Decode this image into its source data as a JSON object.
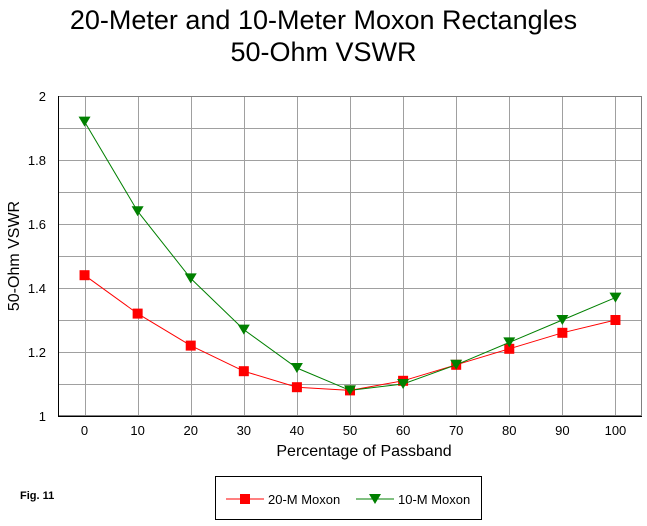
{
  "title_line1": "20-Meter and 10-Meter Moxon Rectangles",
  "title_line2": "50-Ohm VSWR",
  "figure_label": "Fig. 11",
  "chart_data": {
    "type": "line",
    "title": "20-Meter and 10-Meter Moxon Rectangles 50-Ohm VSWR",
    "xlabel": "Percentage of Passband",
    "ylabel": "50-Ohm VSWR",
    "x": [
      0,
      10,
      20,
      30,
      40,
      50,
      60,
      70,
      80,
      90,
      100
    ],
    "xticks": [
      "0",
      "10",
      "20",
      "30",
      "40",
      "50",
      "60",
      "70",
      "80",
      "90",
      "100"
    ],
    "yticks": [
      "1",
      "1.2",
      "1.4",
      "1.6",
      "1.8",
      "2"
    ],
    "yticks_values": [
      1.0,
      1.2,
      1.4,
      1.6,
      1.8,
      2.0
    ],
    "ylim": [
      1.0,
      2.0
    ],
    "xlim": [
      -5,
      105
    ],
    "grid": true,
    "legend_position": "bottom",
    "series": [
      {
        "name": "20-M Moxon",
        "color": "#ff0000",
        "marker": "square",
        "values": [
          1.44,
          1.32,
          1.22,
          1.14,
          1.09,
          1.08,
          1.11,
          1.16,
          1.21,
          1.26,
          1.3
        ]
      },
      {
        "name": "10-M Moxon",
        "color": "#008000",
        "marker": "triangle-down",
        "values": [
          1.92,
          1.64,
          1.43,
          1.27,
          1.15,
          1.08,
          1.1,
          1.16,
          1.23,
          1.3,
          1.37
        ]
      }
    ]
  }
}
